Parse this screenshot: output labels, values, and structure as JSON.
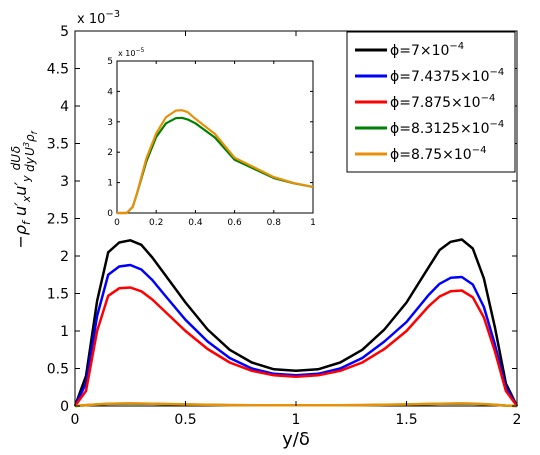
{
  "chart_data": [
    {
      "type": "line",
      "xlabel": "y/δ",
      "ylabel": "−ρ_f ⟨u′_x u′_y⟩ dU/dy δ/(U³ρ_f)",
      "xlim": [
        0,
        2
      ],
      "ylim": [
        0,
        0.005
      ],
      "x_ticks": [
        0,
        0.5,
        1,
        1.5,
        2
      ],
      "x_tick_labels": [
        "0",
        "0.5",
        "1",
        "1.5",
        "2"
      ],
      "y_ticks": [
        0,
        0.5,
        1,
        1.5,
        2,
        2.5,
        3,
        3.5,
        4,
        4.5,
        5
      ],
      "y_tick_labels": [
        "0",
        "0.5",
        "1",
        "1.5",
        "2",
        "2.5",
        "3",
        "3.5",
        "4",
        "4.5",
        "5"
      ],
      "y_multiplier": {
        "base": "x 10",
        "exponent": "−3"
      },
      "legend_position": "top-right",
      "grid": false,
      "x": [
        0,
        0.05,
        0.1,
        0.15,
        0.2,
        0.25,
        0.3,
        0.35,
        0.4,
        0.5,
        0.6,
        0.7,
        0.8,
        0.9,
        1.0,
        1.1,
        1.2,
        1.3,
        1.4,
        1.5,
        1.6,
        1.65,
        1.7,
        1.75,
        1.8,
        1.85,
        1.9,
        1.95,
        2.0
      ],
      "series": [
        {
          "name": "ϕ=7×10",
          "name_sup": "−4",
          "color": "#000000",
          "values": [
            0,
            0.0004,
            0.0014,
            0.00205,
            0.00218,
            0.00221,
            0.00215,
            0.00198,
            0.00178,
            0.00138,
            0.00102,
            0.00075,
            0.00058,
            0.00049,
            0.00047,
            0.00049,
            0.00058,
            0.00075,
            0.00102,
            0.00138,
            0.00185,
            0.00208,
            0.00219,
            0.00222,
            0.0021,
            0.0017,
            0.00105,
            0.0003,
            0
          ]
        },
        {
          "name": "ϕ=7.4375×10",
          "name_sup": "−4",
          "color": "#0000ff",
          "values": [
            0,
            0.0003,
            0.0012,
            0.00175,
            0.00186,
            0.00188,
            0.00182,
            0.00168,
            0.0015,
            0.00115,
            0.00086,
            0.00064,
            0.0005,
            0.00043,
            0.00041,
            0.00043,
            0.0005,
            0.00064,
            0.00086,
            0.00112,
            0.00148,
            0.00163,
            0.00171,
            0.00172,
            0.00162,
            0.00132,
            0.00082,
            0.00025,
            0
          ]
        },
        {
          "name": "ϕ=7.875×10",
          "name_sup": "−4",
          "color": "#ff0000",
          "values": [
            0,
            0.0002,
            0.001,
            0.00147,
            0.00157,
            0.00158,
            0.00153,
            0.00142,
            0.00128,
            0.001,
            0.00076,
            0.00058,
            0.00047,
            0.00041,
            0.00039,
            0.00041,
            0.00047,
            0.00058,
            0.00076,
            0.001,
            0.00133,
            0.00146,
            0.00153,
            0.00154,
            0.00145,
            0.00118,
            0.00073,
            0.0002,
            0
          ]
        },
        {
          "name": "ϕ=8.3125×10",
          "name_sup": "−4",
          "color": "#008000",
          "values": [
            0,
            1e-05,
            2e-05,
            2.8e-05,
            3.1e-05,
            3.2e-05,
            3.1e-05,
            2.9e-05,
            2.6e-05,
            2e-05,
            1.5e-05,
            1.2e-05,
            1e-05,
            9.1e-06,
            8.8e-06,
            9.1e-06,
            1e-05,
            1.2e-05,
            1.5e-05,
            2e-05,
            2.6e-05,
            2.9e-05,
            3.1e-05,
            3.2e-05,
            3e-05,
            2.4e-05,
            1.5e-05,
            5e-06,
            0
          ]
        },
        {
          "name": "ϕ=8.75×10",
          "name_sup": "−4",
          "color": "#e8900a",
          "values": [
            0,
            1.2e-05,
            2.2e-05,
            3e-05,
            3.3e-05,
            3.4e-05,
            3.3e-05,
            3.1e-05,
            2.8e-05,
            2.1e-05,
            1.6e-05,
            1.2e-05,
            1e-05,
            9.1e-06,
            8.8e-06,
            9.1e-06,
            1e-05,
            1.2e-05,
            1.6e-05,
            2.1e-05,
            2.8e-05,
            3.1e-05,
            3.3e-05,
            3.4e-05,
            3.2e-05,
            2.6e-05,
            1.6e-05,
            6e-06,
            0
          ]
        }
      ]
    },
    {
      "type": "line",
      "inset": true,
      "xlim": [
        0,
        1
      ],
      "ylim": [
        0,
        5e-05
      ],
      "x_ticks": [
        0,
        0.2,
        0.4,
        0.6,
        0.8,
        1
      ],
      "x_tick_labels": [
        "0",
        "0.2",
        "0.4",
        "0.6",
        "0.8",
        "1"
      ],
      "y_ticks": [
        0,
        1e-05,
        2e-05,
        3e-05,
        4e-05,
        5e-05
      ],
      "y_tick_labels": [
        "0",
        "1",
        "2",
        "3",
        "4",
        "5"
      ],
      "y_multiplier": {
        "base": "x 10",
        "exponent": "−5"
      },
      "x": [
        0,
        0.05,
        0.08,
        0.1,
        0.15,
        0.2,
        0.25,
        0.3,
        0.33,
        0.36,
        0.4,
        0.5,
        0.6,
        0.7,
        0.8,
        0.9,
        1.0
      ],
      "series": [
        {
          "color": "#008000",
          "values": [
            0,
            0,
            2e-06,
            6e-06,
            1.7e-05,
            2.5e-05,
            2.95e-05,
            3.12e-05,
            3.13e-05,
            3.08e-05,
            2.95e-05,
            2.48e-05,
            1.75e-05,
            1.45e-05,
            1.15e-05,
            9.8e-06,
            8.6e-06
          ]
        },
        {
          "color": "#e8900a",
          "values": [
            0,
            0,
            2e-06,
            6e-06,
            1.8e-05,
            2.62e-05,
            3.15e-05,
            3.37e-05,
            3.38e-05,
            3.32e-05,
            3.1e-05,
            2.6e-05,
            1.82e-05,
            1.5e-05,
            1.18e-05,
            9.9e-06,
            8.6e-06
          ]
        }
      ]
    }
  ]
}
